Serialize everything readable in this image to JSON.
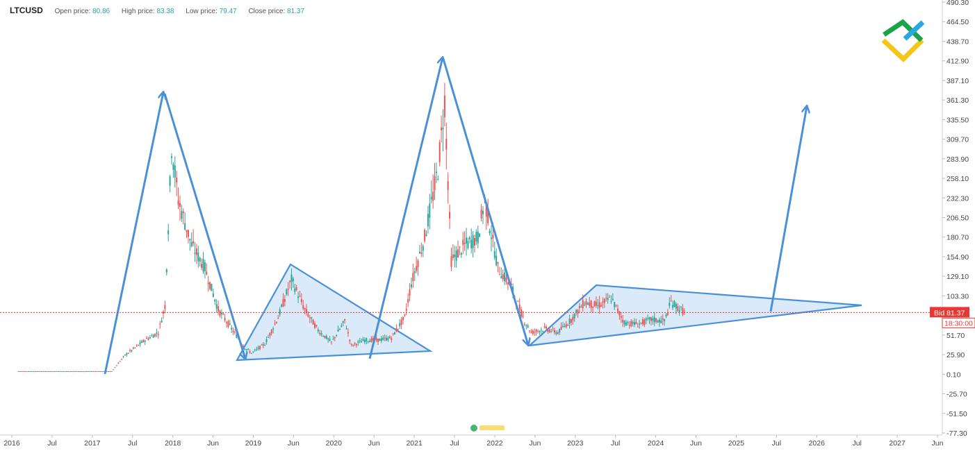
{
  "header": {
    "symbol": "LTCUSD",
    "open_label": "Open price:",
    "open_value": "80.86",
    "high_label": "High price:",
    "high_value": "83.38",
    "low_label": "Low price:",
    "low_value": "79.47",
    "close_label": "Close price:",
    "close_value": "81.37"
  },
  "price_tag": {
    "label": "Bid 81.37",
    "time": "18:30:00"
  },
  "colors": {
    "up": "#26a69a",
    "down": "#ef5350",
    "annotation": "#4a90d9",
    "triangle_fill": "#cfe3f5",
    "bid": "#e53935",
    "logo_green": "#1aa34a",
    "logo_blue": "#29a8e0",
    "logo_yellow": "#f5c518"
  },
  "chart_data": {
    "type": "candlestick",
    "instrument": "LTCUSD",
    "x_axis_labels": [
      "2016",
      "Jul",
      "2017",
      "Jul",
      "2018",
      "Jun",
      "2019",
      "Jun",
      "2020",
      "Jun",
      "2021",
      "Jul",
      "2022",
      "Jun",
      "2023",
      "Jul",
      "2024",
      "Jun",
      "2025",
      "Jul",
      "2026",
      "Jul",
      "2027",
      "Jun"
    ],
    "y_ticks": [
      "490.30",
      "464.50",
      "438.70",
      "412.90",
      "387.10",
      "361.30",
      "335.50",
      "309.70",
      "283.90",
      "258.10",
      "232.30",
      "206.50",
      "180.70",
      "154.90",
      "129.10",
      "103.30",
      "51.70",
      "25.90",
      "0.10",
      "-25.70",
      "-51.50",
      "-77.30"
    ],
    "y_range": [
      -77.3,
      490.3
    ],
    "x_range": [
      "2015-12",
      "2027-07"
    ],
    "current_price": 81.37,
    "price_path": [
      [
        "2016-01",
        4
      ],
      [
        "2016-07",
        4
      ],
      [
        "2017-01",
        4
      ],
      [
        "2017-03",
        4
      ],
      [
        "2017-05",
        25
      ],
      [
        "2017-08",
        45
      ],
      [
        "2017-10",
        55
      ],
      [
        "2017-11",
        90
      ],
      [
        "2017-12",
        300
      ],
      [
        "2018-01",
        230
      ],
      [
        "2018-03",
        170
      ],
      [
        "2018-05",
        140
      ],
      [
        "2018-07",
        85
      ],
      [
        "2018-09",
        60
      ],
      [
        "2018-11",
        35
      ],
      [
        "2018-12",
        28
      ],
      [
        "2019-02",
        40
      ],
      [
        "2019-04",
        75
      ],
      [
        "2019-06",
        125
      ],
      [
        "2019-08",
        85
      ],
      [
        "2019-10",
        58
      ],
      [
        "2019-12",
        42
      ],
      [
        "2020-02",
        70
      ],
      [
        "2020-03",
        38
      ],
      [
        "2020-05",
        45
      ],
      [
        "2020-07",
        45
      ],
      [
        "2020-09",
        48
      ],
      [
        "2020-11",
        75
      ],
      [
        "2020-12",
        120
      ],
      [
        "2021-02",
        180
      ],
      [
        "2021-04",
        270
      ],
      [
        "2021-05",
        360
      ],
      [
        "2021-06",
        150
      ],
      [
        "2021-08",
        170
      ],
      [
        "2021-10",
        180
      ],
      [
        "2021-11",
        230
      ],
      [
        "2022-01",
        140
      ],
      [
        "2022-03",
        115
      ],
      [
        "2022-05",
        70
      ],
      [
        "2022-06",
        55
      ],
      [
        "2022-08",
        60
      ],
      [
        "2022-10",
        55
      ],
      [
        "2022-12",
        72
      ],
      [
        "2023-02",
        95
      ],
      [
        "2023-04",
        90
      ],
      [
        "2023-06",
        100
      ],
      [
        "2023-08",
        68
      ],
      [
        "2023-10",
        66
      ],
      [
        "2023-12",
        72
      ],
      [
        "2024-02",
        70
      ],
      [
        "2024-03",
        95
      ],
      [
        "2024-04",
        88
      ],
      [
        "2024-05",
        81.37
      ]
    ]
  }
}
